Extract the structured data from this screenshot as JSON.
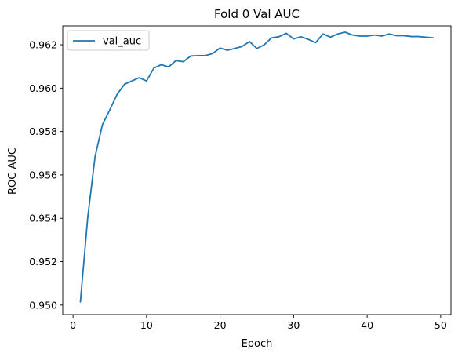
{
  "chart_data": {
    "type": "line",
    "title": "Fold 0 Val AUC",
    "xlabel": "Epoch",
    "ylabel": "ROC AUC",
    "xlim": [
      -1.4,
      51.4
    ],
    "ylim": [
      0.94956,
      0.96287
    ],
    "xticks": [
      0,
      10,
      20,
      30,
      40,
      50
    ],
    "yticks": [
      0.95,
      0.952,
      0.954,
      0.956,
      0.958,
      0.96,
      0.962
    ],
    "ytick_labels": [
      "0.950",
      "0.952",
      "0.954",
      "0.956",
      "0.958",
      "0.960",
      "0.962"
    ],
    "grid": false,
    "legend_position": "upper-left",
    "series": [
      {
        "name": "val_auc",
        "color": "#1f77b4",
        "x": [
          1,
          2,
          3,
          4,
          5,
          6,
          7,
          8,
          9,
          10,
          11,
          12,
          13,
          14,
          15,
          16,
          17,
          18,
          19,
          20,
          21,
          22,
          23,
          24,
          25,
          26,
          27,
          28,
          29,
          30,
          31,
          32,
          33,
          34,
          35,
          36,
          37,
          38,
          39,
          40,
          41,
          42,
          43,
          44,
          45,
          46,
          47,
          48,
          49
        ],
        "y": [
          0.95015,
          0.95405,
          0.95685,
          0.95832,
          0.959,
          0.95972,
          0.96018,
          0.96033,
          0.96048,
          0.96033,
          0.96093,
          0.96108,
          0.96098,
          0.96127,
          0.96122,
          0.96148,
          0.9615,
          0.9615,
          0.9616,
          0.96185,
          0.96175,
          0.96183,
          0.96192,
          0.96215,
          0.96183,
          0.962,
          0.96232,
          0.96237,
          0.96253,
          0.96227,
          0.96237,
          0.96225,
          0.9621,
          0.9625,
          0.96235,
          0.9625,
          0.96258,
          0.96245,
          0.9624,
          0.9624,
          0.96245,
          0.9624,
          0.9625,
          0.96242,
          0.96242,
          0.96238,
          0.96238,
          0.96235,
          0.96232
        ]
      }
    ]
  }
}
